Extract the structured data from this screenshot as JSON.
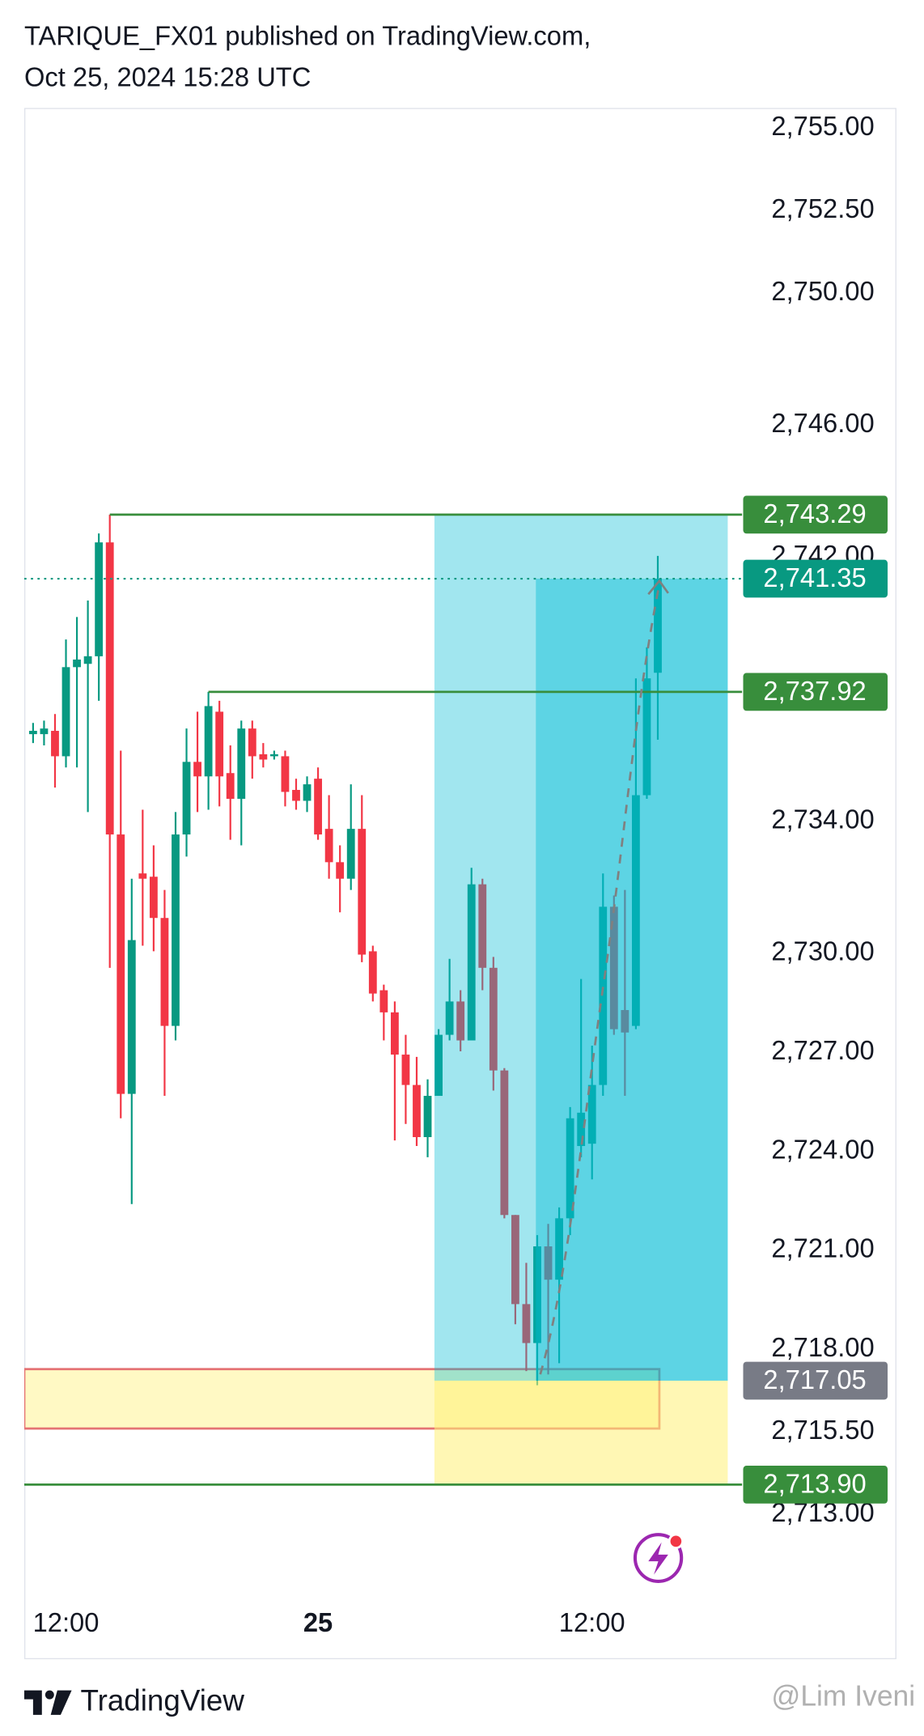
{
  "chart_data": {
    "type": "candlestick",
    "title": "TARIQUE_FX01 published on TradingView.com,",
    "subtitle": "Oct 25, 2024 15:28 UTC",
    "brand": "TradingView",
    "watermark": "@Lim Iveni",
    "up_color": "#089981",
    "down_color": "#f23645",
    "categories": [
      null,
      null,
      null,
      "12:00",
      null,
      null,
      null,
      null,
      null,
      null,
      null,
      null,
      null,
      null,
      null,
      null,
      null,
      null,
      null,
      null,
      null,
      null,
      null,
      null,
      null,
      null,
      "25",
      null,
      null,
      null,
      null,
      null,
      null,
      null,
      null,
      null,
      null,
      null,
      null,
      null,
      null,
      null,
      null,
      null,
      null,
      null,
      null,
      null,
      null,
      null,
      null,
      "12:00",
      null,
      null,
      null,
      null,
      null,
      null
    ],
    "open": [
      2736.64,
      2736.64,
      2736.74,
      2735.97,
      2738.67,
      2738.77,
      2739.0,
      2742.45,
      2733.6,
      2725.74,
      2732.42,
      2732.32,
      2731.07,
      2727.8,
      2733.6,
      2735.8,
      2735.36,
      2737.32,
      2735.46,
      2734.68,
      2736.81,
      2736.03,
      2735.97,
      2735.97,
      2734.95,
      2734.62,
      2735.29,
      2733.77,
      2732.76,
      2732.26,
      2733.77,
      2730.06,
      2728.88,
      2728.21,
      2726.93,
      2726.01,
      2724.43,
      2725.68,
      2727.53,
      2728.54,
      2727.36,
      2732.09,
      2729.56,
      2726.45,
      2722.07,
      2719.37,
      2718.19,
      2721.12,
      2720.11,
      2721.97,
      2724.16,
      2724.23,
      2726.01,
      2731.41,
      2728.28,
      2727.8,
      2734.79,
      2738.5
    ],
    "high": [
      2736.98,
      2737.05,
      2737.25,
      2739.51,
      2740.19,
      2740.69,
      2742.72,
      2743.29,
      2736.14,
      2732.26,
      2734.35,
      2733.27,
      2731.92,
      2734.28,
      2736.81,
      2737.32,
      2737.92,
      2737.65,
      2736.3,
      2737.05,
      2737.05,
      2736.37,
      2736.14,
      2736.14,
      2735.29,
      2735.36,
      2735.63,
      2734.79,
      2733.27,
      2735.12,
      2734.79,
      2730.23,
      2729.05,
      2728.54,
      2727.53,
      2726.86,
      2726.18,
      2727.7,
      2729.83,
      2728.88,
      2732.59,
      2732.26,
      2729.89,
      2726.52,
      2722.07,
      2720.62,
      2721.46,
      2721.8,
      2722.3,
      2725.34,
      2729.22,
      2727.2,
      2732.42,
      2731.75,
      2731.92,
      2738.33,
      2739.27,
      2742.04
    ],
    "low": [
      2736.37,
      2736.3,
      2735.02,
      2735.63,
      2735.63,
      2734.28,
      2737.65,
      2729.56,
      2725.0,
      2722.4,
      2730.23,
      2730.06,
      2725.68,
      2727.36,
      2732.93,
      2734.28,
      2734.35,
      2734.45,
      2733.44,
      2733.27,
      2735.29,
      2735.63,
      2735.87,
      2734.45,
      2734.35,
      2734.28,
      2733.44,
      2732.26,
      2731.24,
      2731.92,
      2729.73,
      2728.54,
      2727.36,
      2724.33,
      2724.83,
      2724.16,
      2723.82,
      2725.68,
      2727.36,
      2727.03,
      2727.36,
      2728.88,
      2725.84,
      2721.97,
      2718.76,
      2717.34,
      2716.91,
      2717.24,
      2717.58,
      2721.46,
      2723.82,
      2723.15,
      2725.68,
      2727.53,
      2725.68,
      2727.7,
      2734.68,
      2736.47
    ],
    "close": [
      2736.74,
      2736.81,
      2735.97,
      2738.67,
      2738.9,
      2739.0,
      2742.45,
      2733.6,
      2725.74,
      2730.4,
      2732.26,
      2731.07,
      2727.8,
      2733.6,
      2735.8,
      2735.36,
      2737.49,
      2735.36,
      2734.68,
      2736.81,
      2735.97,
      2735.87,
      2736.03,
      2734.89,
      2734.62,
      2735.12,
      2733.6,
      2732.76,
      2732.26,
      2733.77,
      2729.96,
      2728.78,
      2728.21,
      2726.93,
      2726.01,
      2724.43,
      2725.68,
      2727.53,
      2728.54,
      2727.36,
      2732.09,
      2729.56,
      2726.45,
      2722.07,
      2719.37,
      2718.19,
      2721.12,
      2720.11,
      2721.97,
      2725.0,
      2725.17,
      2726.01,
      2731.41,
      2727.7,
      2727.6,
      2734.79,
      2738.33,
      2741.35
    ],
    "ylim": [
      2710.33,
      2755.58
    ],
    "yticks": [
      {
        "value": 2755,
        "label": "2,755.00"
      },
      {
        "value": 2752.5,
        "label": "2,752.50"
      },
      {
        "value": 2750,
        "label": "2,750.00"
      },
      {
        "value": 2746,
        "label": "2,746.00"
      },
      {
        "value": 2742,
        "label": "2,742.00"
      },
      {
        "value": 2734,
        "label": "2,734.00"
      },
      {
        "value": 2730,
        "label": "2,730.00"
      },
      {
        "value": 2727,
        "label": "2,727.00"
      },
      {
        "value": 2724,
        "label": "2,724.00"
      },
      {
        "value": 2721,
        "label": "2,721.00"
      },
      {
        "value": 2718,
        "label": "2,718.00"
      },
      {
        "value": 2715.5,
        "label": "2,715.50"
      },
      {
        "value": 2713,
        "label": "2,713.00"
      }
    ],
    "grid": false,
    "price_lines": [
      {
        "role": "target",
        "value": 2743.29,
        "label": "2,743.29",
        "color": "#388e3c"
      },
      {
        "role": "current",
        "value": 2741.35,
        "label": "2,741.35",
        "color": "#089981"
      },
      {
        "role": "level",
        "value": 2737.92,
        "label": "2,737.92",
        "color": "#388e3c"
      },
      {
        "role": "entry",
        "value": 2717.05,
        "label": "2,717.05",
        "color": "#787b86"
      },
      {
        "role": "stop",
        "value": 2713.9,
        "label": "2,713.90",
        "color": "#388e3c"
      }
    ],
    "zone": {
      "top": 2717.4,
      "bottom": 2715.6,
      "color": "#e57373"
    }
  }
}
